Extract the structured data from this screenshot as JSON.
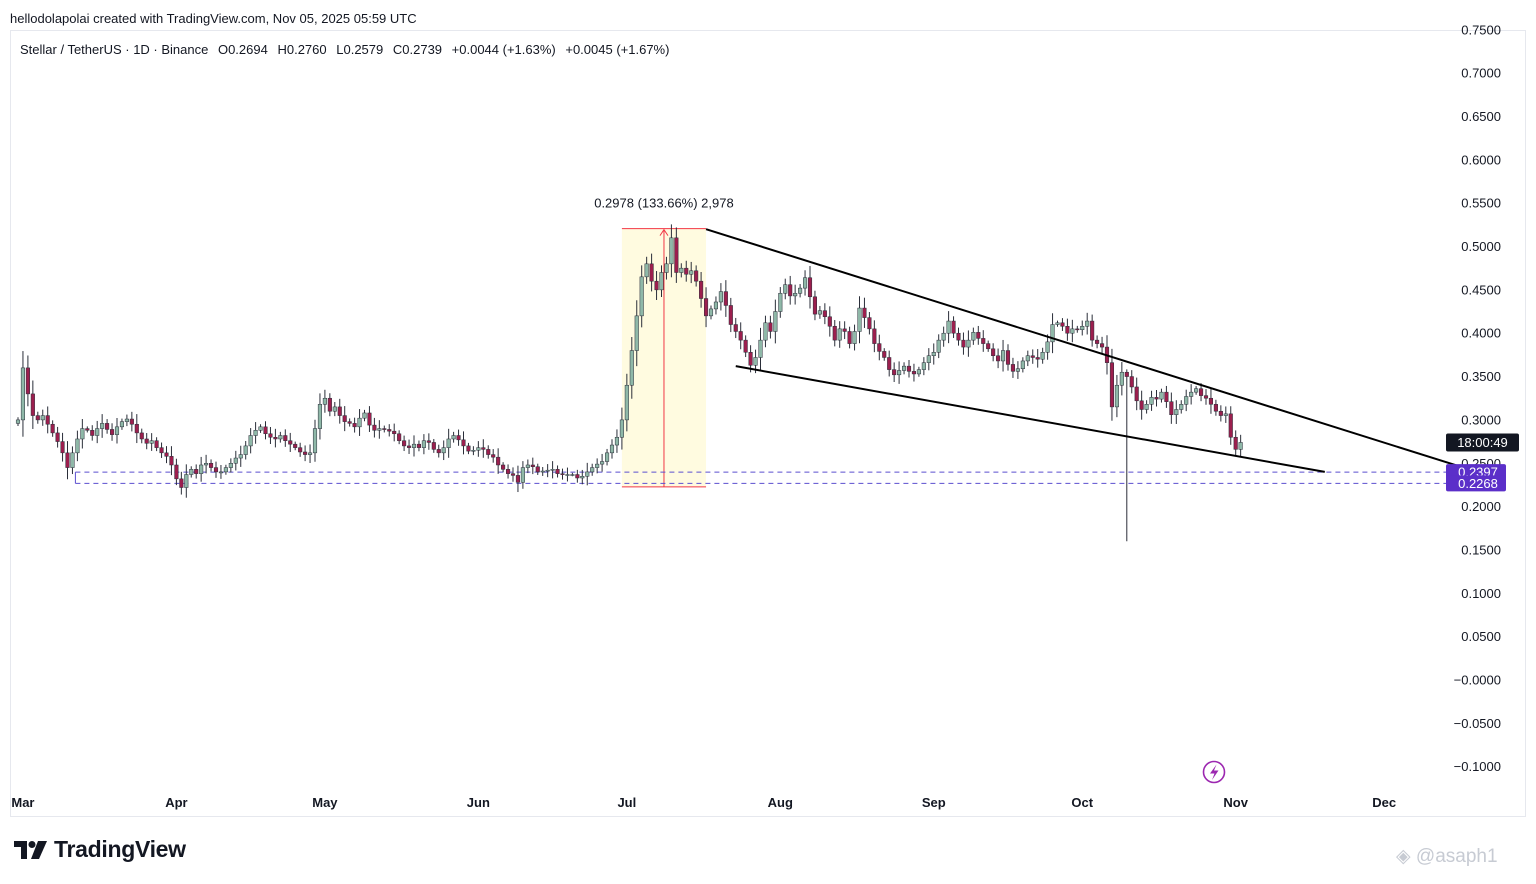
{
  "attribution": "hellodolapolai created with TradingView.com, Nov 05, 2025 05:59 UTC",
  "header": {
    "pair": "Stellar / TetherUS · 1D · Binance",
    "open": "O0.2694",
    "high": "H0.2760",
    "low": "L0.2579",
    "close": "C0.2739",
    "change": "+0.0044 (+1.63%)",
    "change2": "+0.0045 (+1.67%)"
  },
  "logo": {
    "text": "TradingView",
    "icon": "tradingview-logo-icon"
  },
  "watermark": "@asaph1",
  "colors": {
    "up": "#8fb8a8",
    "down": "#9c1f4e",
    "trendline": "#000000",
    "dashed": "#5b4fcf",
    "range_fill": "#fffbe0",
    "range_border": "#f23645",
    "price_tag": "#5b2fc9",
    "countdown_bg": "#131722"
  },
  "chart_data": {
    "type": "candlestick",
    "symbol": "XLMUSDT",
    "interval": "1D",
    "ylim": [
      -0.12,
      0.75
    ],
    "yticks": [
      "0.7500",
      "0.7000",
      "0.6500",
      "0.6000",
      "0.5500",
      "0.5000",
      "0.4500",
      "0.4000",
      "0.3500",
      "0.3000",
      "0.2500",
      "0.2000",
      "0.1500",
      "0.1000",
      "0.0500",
      "−0.0000",
      "−0.0500",
      "−0.1000"
    ],
    "ytick_values": [
      0.75,
      0.7,
      0.65,
      0.6,
      0.55,
      0.5,
      0.45,
      0.4,
      0.35,
      0.3,
      0.25,
      0.2,
      0.15,
      0.1,
      0.05,
      0.0,
      -0.05,
      -0.1
    ],
    "xticks": [
      {
        "label": "Mar",
        "date": "2025-03-01"
      },
      {
        "label": "Apr",
        "date": "2025-04-01"
      },
      {
        "label": "May",
        "date": "2025-05-01"
      },
      {
        "label": "Jun",
        "date": "2025-06-01"
      },
      {
        "label": "Jul",
        "date": "2025-07-01"
      },
      {
        "label": "Aug",
        "date": "2025-08-01"
      },
      {
        "label": "Sep",
        "date": "2025-09-01"
      },
      {
        "label": "Oct",
        "date": "2025-10-01"
      },
      {
        "label": "Nov",
        "date": "2025-11-01"
      },
      {
        "label": "Dec",
        "date": "2025-12-01"
      }
    ],
    "start_date": "2025-02-28",
    "closes": [
      0.3,
      0.36,
      0.33,
      0.305,
      0.3,
      0.305,
      0.295,
      0.285,
      0.275,
      0.262,
      0.245,
      0.262,
      0.278,
      0.29,
      0.288,
      0.282,
      0.29,
      0.296,
      0.289,
      0.283,
      0.292,
      0.298,
      0.301,
      0.295,
      0.285,
      0.278,
      0.273,
      0.276,
      0.268,
      0.262,
      0.258,
      0.248,
      0.232,
      0.222,
      0.237,
      0.243,
      0.238,
      0.248,
      0.25,
      0.245,
      0.24,
      0.24,
      0.245,
      0.25,
      0.256,
      0.26,
      0.27,
      0.282,
      0.288,
      0.292,
      0.284,
      0.28,
      0.278,
      0.282,
      0.276,
      0.272,
      0.268,
      0.263,
      0.26,
      0.262,
      0.29,
      0.318,
      0.325,
      0.31,
      0.315,
      0.305,
      0.298,
      0.296,
      0.292,
      0.302,
      0.308,
      0.294,
      0.288,
      0.29,
      0.289,
      0.287,
      0.284,
      0.276,
      0.27,
      0.268,
      0.272,
      0.268,
      0.276,
      0.274,
      0.266,
      0.262,
      0.268,
      0.278,
      0.282,
      0.277,
      0.27,
      0.264,
      0.265,
      0.268,
      0.266,
      0.26,
      0.257,
      0.248,
      0.243,
      0.238,
      0.236,
      0.228,
      0.245,
      0.248,
      0.246,
      0.24,
      0.241,
      0.242,
      0.243,
      0.238,
      0.237,
      0.237,
      0.237,
      0.233,
      0.235,
      0.24,
      0.245,
      0.249,
      0.252,
      0.262,
      0.271,
      0.28,
      0.3,
      0.34,
      0.38,
      0.42,
      0.465,
      0.48,
      0.46,
      0.45,
      0.47,
      0.48,
      0.51,
      0.47,
      0.475,
      0.468,
      0.472,
      0.46,
      0.44,
      0.42,
      0.428,
      0.436,
      0.448,
      0.432,
      0.41,
      0.402,
      0.392,
      0.378,
      0.363,
      0.372,
      0.392,
      0.412,
      0.402,
      0.425,
      0.446,
      0.456,
      0.443,
      0.446,
      0.452,
      0.464,
      0.442,
      0.422,
      0.426,
      0.419,
      0.408,
      0.392,
      0.405,
      0.402,
      0.388,
      0.402,
      0.429,
      0.418,
      0.405,
      0.388,
      0.379,
      0.372,
      0.358,
      0.352,
      0.357,
      0.362,
      0.356,
      0.353,
      0.358,
      0.366,
      0.374,
      0.378,
      0.392,
      0.4,
      0.414,
      0.4,
      0.392,
      0.384,
      0.392,
      0.401,
      0.394,
      0.388,
      0.382,
      0.374,
      0.368,
      0.38,
      0.364,
      0.356,
      0.359,
      0.368,
      0.374,
      0.372,
      0.37,
      0.378,
      0.39,
      0.41,
      0.412,
      0.408,
      0.4,
      0.405,
      0.404,
      0.408,
      0.414,
      0.392,
      0.388,
      0.384,
      0.366,
      0.315,
      0.34,
      0.355,
      0.35,
      0.338,
      0.322,
      0.312,
      0.318,
      0.326,
      0.324,
      0.332,
      0.321,
      0.306,
      0.312,
      0.318,
      0.327,
      0.332,
      0.336,
      0.328,
      0.325,
      0.318,
      0.31,
      0.305,
      0.307,
      0.28,
      0.266,
      0.274
    ],
    "events": [
      {
        "date": "2025-10-10",
        "low": 0.16
      }
    ],
    "annotations": {
      "price_range": {
        "label": "0.2978 (133.66%) 2,978",
        "start_date": "2025-06-30",
        "end_date": "2025-07-17",
        "low": 0.2228,
        "high": 0.5206
      },
      "upper_trendline": {
        "points": [
          {
            "date": "2025-07-17",
            "price": 0.52
          },
          {
            "date": "2025-12-17",
            "price": 0.245
          }
        ]
      },
      "lower_trendline": {
        "points": [
          {
            "date": "2025-07-23",
            "price": 0.362
          },
          {
            "date": "2025-11-19",
            "price": 0.24
          }
        ]
      },
      "horizontal_levels": [
        {
          "price": 0.2397,
          "label": "0.2397",
          "from_date": "2025-03-12"
        },
        {
          "price": 0.2268,
          "label": "0.2268",
          "from_date": "2025-03-12"
        }
      ],
      "countdown": {
        "label": "18:00:49",
        "price": 0.2739
      }
    }
  }
}
